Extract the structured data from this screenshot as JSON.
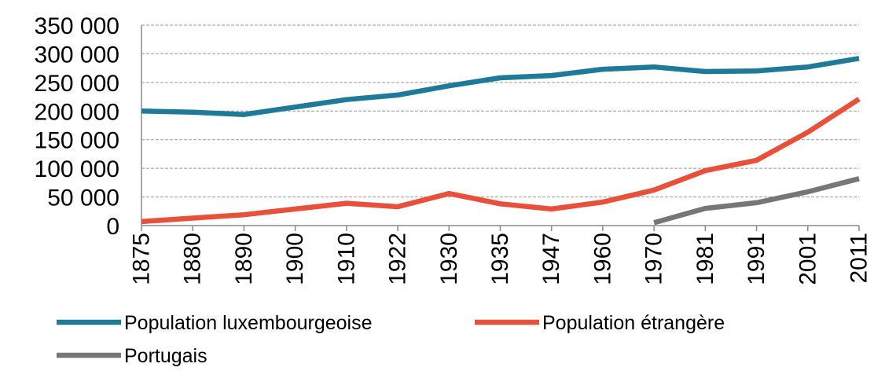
{
  "chart_data": {
    "type": "line",
    "title": "",
    "xlabel": "",
    "ylabel": "",
    "categories": [
      "1875",
      "1880",
      "1890",
      "1900",
      "1910",
      "1922",
      "1930",
      "1935",
      "1947",
      "1960",
      "1970",
      "1981",
      "1991",
      "2001",
      "2011"
    ],
    "ylim": [
      0,
      350000
    ],
    "yticks": [
      {
        "value": 0,
        "label": "0"
      },
      {
        "value": 50000,
        "label": "50 000"
      },
      {
        "value": 100000,
        "label": "100 000"
      },
      {
        "value": 150000,
        "label": "150 000"
      },
      {
        "value": 200000,
        "label": "200 000"
      },
      {
        "value": 250000,
        "label": "250 000"
      },
      {
        "value": 300000,
        "label": "300 000"
      },
      {
        "value": 350000,
        "label": "350 000"
      }
    ],
    "grid": true,
    "legend_position": "bottom",
    "series": [
      {
        "name": "Population luxembourgeoise",
        "color": "#1f7a99",
        "values": [
          200000,
          198000,
          194000,
          207000,
          220000,
          228000,
          244000,
          258000,
          262000,
          273000,
          277000,
          269000,
          270000,
          277000,
          292000
        ]
      },
      {
        "name": "Population étrangère",
        "color": "#e8503a",
        "values": [
          7000,
          13000,
          19000,
          29000,
          39000,
          33000,
          56000,
          38000,
          29000,
          41000,
          62000,
          96000,
          114000,
          163000,
          221000
        ]
      },
      {
        "name": "Portugais",
        "color": "#767676",
        "values": [
          null,
          null,
          null,
          null,
          null,
          null,
          null,
          null,
          null,
          null,
          5000,
          30000,
          40000,
          59000,
          82000
        ]
      }
    ]
  }
}
